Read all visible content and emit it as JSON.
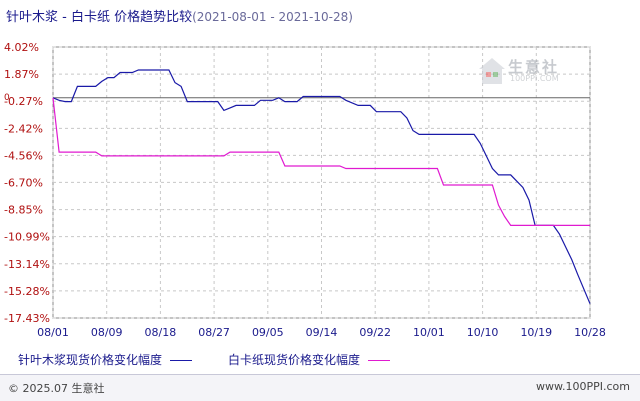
{
  "title": {
    "main": "针叶木浆 - 白卡纸 价格趋势比较",
    "range": "(2021-08-01 - 2021-10-28)"
  },
  "logo": {
    "name": "生意社",
    "url": "100PPI.COM"
  },
  "footer": {
    "copyright": "© 2025.07 生意社",
    "source": "www.100PPI.com"
  },
  "colors": {
    "series1": "#1a1aa8",
    "series2": "#e01ad0",
    "grid": "#c8c8c8",
    "text": "#1a1a8c",
    "ytick": "#b01010"
  },
  "chart_data": {
    "type": "line",
    "xlim": [
      "2021-08-01",
      "2021-10-28"
    ],
    "ylim": [
      -17.43,
      4.02
    ],
    "x_ticks": [
      "08/01",
      "08/09",
      "08/18",
      "08/27",
      "09/05",
      "09/14",
      "09/22",
      "10/01",
      "10/10",
      "10/19",
      "10/28"
    ],
    "y_ticks": [
      "4.02%",
      "1.87%",
      "-0.27%",
      "-2.42%",
      "-4.56%",
      "-6.70%",
      "-8.85%",
      "-10.99%",
      "-13.14%",
      "-15.28%",
      "-17.43%"
    ],
    "y_tick_values": [
      4.02,
      1.87,
      -0.27,
      -2.42,
      -4.56,
      -6.7,
      -8.85,
      -10.99,
      -13.14,
      -15.28,
      -17.43
    ],
    "zero_label": "0",
    "grid": true,
    "legend_position": "bottom",
    "series": [
      {
        "name": "针叶木浆现货价格变化幅度",
        "points": [
          [
            "2021-08-01",
            0.0
          ],
          [
            "2021-08-02",
            -0.2
          ],
          [
            "2021-08-03",
            -0.3
          ],
          [
            "2021-08-04",
            -0.3
          ],
          [
            "2021-08-05",
            0.9
          ],
          [
            "2021-08-07",
            0.9
          ],
          [
            "2021-08-08",
            0.9
          ],
          [
            "2021-08-09",
            1.3
          ],
          [
            "2021-08-10",
            1.6
          ],
          [
            "2021-08-11",
            1.6
          ],
          [
            "2021-08-12",
            2.0
          ],
          [
            "2021-08-14",
            2.0
          ],
          [
            "2021-08-15",
            2.2
          ],
          [
            "2021-08-20",
            2.2
          ],
          [
            "2021-08-21",
            1.2
          ],
          [
            "2021-08-22",
            0.9
          ],
          [
            "2021-08-23",
            -0.3
          ],
          [
            "2021-08-28",
            -0.3
          ],
          [
            "2021-08-29",
            -1.0
          ],
          [
            "2021-08-30",
            -0.8
          ],
          [
            "2021-08-31",
            -0.6
          ],
          [
            "2021-09-03",
            -0.6
          ],
          [
            "2021-09-04",
            -0.2
          ],
          [
            "2021-09-06",
            -0.2
          ],
          [
            "2021-09-07",
            0.0
          ],
          [
            "2021-09-08",
            -0.3
          ],
          [
            "2021-09-10",
            -0.3
          ],
          [
            "2021-09-11",
            0.1
          ],
          [
            "2021-09-17",
            0.1
          ],
          [
            "2021-09-18",
            -0.2
          ],
          [
            "2021-09-20",
            -0.6
          ],
          [
            "2021-09-22",
            -0.6
          ],
          [
            "2021-09-23",
            -1.1
          ],
          [
            "2021-09-27",
            -1.1
          ],
          [
            "2021-09-28",
            -1.6
          ],
          [
            "2021-09-29",
            -2.6
          ],
          [
            "2021-09-30",
            -2.9
          ],
          [
            "2021-10-09",
            -2.9
          ],
          [
            "2021-10-10",
            -3.6
          ],
          [
            "2021-10-11",
            -4.6
          ],
          [
            "2021-10-12",
            -5.6
          ],
          [
            "2021-10-13",
            -6.1
          ],
          [
            "2021-10-15",
            -6.1
          ],
          [
            "2021-10-16",
            -6.6
          ],
          [
            "2021-10-17",
            -7.1
          ],
          [
            "2021-10-18",
            -8.1
          ],
          [
            "2021-10-19",
            -10.1
          ],
          [
            "2021-10-22",
            -10.1
          ],
          [
            "2021-10-23",
            -10.8
          ],
          [
            "2021-10-24",
            -11.8
          ],
          [
            "2021-10-25",
            -12.8
          ],
          [
            "2021-10-26",
            -14.0
          ],
          [
            "2021-10-28",
            -16.3
          ]
        ]
      },
      {
        "name": "白卡纸现货价格变化幅度",
        "points": [
          [
            "2021-08-01",
            0.0
          ],
          [
            "2021-08-02",
            -4.3
          ],
          [
            "2021-08-08",
            -4.3
          ],
          [
            "2021-08-09",
            -4.6
          ],
          [
            "2021-08-29",
            -4.6
          ],
          [
            "2021-08-30",
            -4.3
          ],
          [
            "2021-09-07",
            -4.3
          ],
          [
            "2021-09-08",
            -5.4
          ],
          [
            "2021-09-17",
            -5.4
          ],
          [
            "2021-09-18",
            -5.6
          ],
          [
            "2021-10-03",
            -5.6
          ],
          [
            "2021-10-04",
            -6.9
          ],
          [
            "2021-10-12",
            -6.9
          ],
          [
            "2021-10-13",
            -8.5
          ],
          [
            "2021-10-14",
            -9.4
          ],
          [
            "2021-10-15",
            -10.1
          ],
          [
            "2021-10-28",
            -10.1
          ]
        ]
      }
    ]
  }
}
